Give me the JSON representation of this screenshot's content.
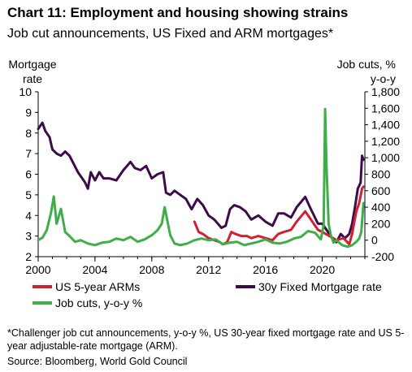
{
  "header": {
    "title": "Chart 11: Employment and housing showing strains",
    "subtitle": "Job cut announcements, US Fixed and ARM mortgages*"
  },
  "footnote": "*Challenger job cut announcements, y-o-y %, US 30-year fixed mortgage rate and US 5-year adjustable-rate mortgage (ARM).",
  "source": "Source: Bloomberg, World Gold Council",
  "chart_data": {
    "type": "line",
    "x_ticks": [
      "2000",
      "2004",
      "2008",
      "2012",
      "2016",
      "2020"
    ],
    "xlim": [
      2000,
      2023
    ],
    "left_axis": {
      "label_lines": [
        "Mortgage",
        "rate"
      ],
      "ylim": [
        2,
        10
      ],
      "ticks": [
        "2",
        "3",
        "4",
        "5",
        "6",
        "7",
        "8",
        "9",
        "10"
      ]
    },
    "right_axis": {
      "label_lines": [
        "Job cuts, %",
        "y-o-y"
      ],
      "ylim": [
        -200,
        1800
      ],
      "ticks": [
        "-200",
        "0",
        "200",
        "400",
        "600",
        "800",
        "1,000",
        "1,200",
        "1,400",
        "1,600",
        "1,800"
      ]
    },
    "legend": {
      "position": "bottom",
      "items": [
        {
          "key": "arm",
          "label": "US 5-year ARMs"
        },
        {
          "key": "fixed",
          "label": "30y Fixed Mortgage rate"
        },
        {
          "key": "jobcuts",
          "label": "Job cuts, y-o-y %"
        }
      ]
    },
    "colors": {
      "fixed": "#3d0b4a",
      "arm": "#d1202f",
      "jobcuts": "#3fae49"
    },
    "series": [
      {
        "key": "fixed",
        "name": "30y Fixed Mortgage rate",
        "axis": "left",
        "x": [
          2000.0,
          2000.3,
          2000.5,
          2000.8,
          2001.0,
          2001.3,
          2001.6,
          2001.9,
          2002.2,
          2002.5,
          2002.8,
          2003.0,
          2003.3,
          2003.5,
          2003.7,
          2004.0,
          2004.3,
          2004.6,
          2005.0,
          2005.5,
          2006.0,
          2006.5,
          2006.8,
          2007.2,
          2007.6,
          2008.0,
          2008.4,
          2008.8,
          2009.0,
          2009.3,
          2009.6,
          2010.0,
          2010.4,
          2010.8,
          2011.2,
          2011.6,
          2012.0,
          2012.4,
          2012.9,
          2013.2,
          2013.5,
          2013.8,
          2014.2,
          2014.6,
          2015.0,
          2015.5,
          2016.0,
          2016.5,
          2016.9,
          2017.3,
          2017.8,
          2018.2,
          2018.8,
          2019.2,
          2019.7,
          2020.0,
          2020.3,
          2020.7,
          2021.0,
          2021.3,
          2021.6,
          2021.9,
          2022.1,
          2022.3,
          2022.5,
          2022.7,
          2022.8,
          2022.9
        ],
        "values": [
          8.2,
          8.5,
          8.1,
          7.8,
          7.2,
          7.0,
          6.9,
          7.1,
          6.9,
          6.5,
          6.1,
          5.9,
          5.6,
          5.3,
          6.1,
          5.7,
          6.1,
          5.8,
          5.8,
          5.7,
          6.2,
          6.6,
          6.3,
          6.2,
          6.4,
          5.8,
          6.0,
          6.1,
          5.1,
          5.0,
          5.2,
          5.0,
          4.8,
          4.3,
          4.8,
          4.5,
          4.0,
          3.8,
          3.4,
          3.5,
          4.3,
          4.5,
          4.4,
          4.2,
          3.8,
          4.0,
          3.7,
          3.5,
          4.1,
          4.1,
          3.9,
          4.4,
          4.9,
          4.3,
          3.6,
          3.6,
          3.3,
          2.9,
          2.7,
          3.1,
          2.9,
          3.1,
          3.6,
          4.4,
          5.3,
          5.6,
          6.9,
          6.7
        ]
      },
      {
        "key": "arm",
        "name": "US 5-year ARMs",
        "axis": "left",
        "x": [
          2011.0,
          2011.3,
          2011.6,
          2012.0,
          2012.4,
          2012.8,
          2013.0,
          2013.3,
          2013.6,
          2013.9,
          2014.3,
          2014.7,
          2015.0,
          2015.5,
          2016.0,
          2016.5,
          2016.9,
          2017.3,
          2017.8,
          2018.2,
          2018.8,
          2019.2,
          2019.7,
          2020.0,
          2020.5,
          2021.0,
          2021.5,
          2021.9,
          2022.1,
          2022.4,
          2022.6,
          2022.8,
          2022.9
        ],
        "values": [
          3.7,
          3.2,
          3.1,
          2.9,
          2.8,
          2.7,
          2.6,
          2.7,
          3.2,
          3.1,
          3.0,
          3.0,
          2.9,
          3.0,
          2.9,
          2.8,
          3.1,
          3.2,
          3.3,
          3.7,
          4.2,
          3.8,
          3.3,
          3.2,
          3.0,
          2.8,
          2.9,
          2.6,
          3.1,
          4.2,
          4.6,
          5.3,
          5.4
        ]
      },
      {
        "key": "jobcuts",
        "name": "Job cuts, y-o-y %",
        "axis": "right",
        "x": [
          2000.0,
          2000.3,
          2000.6,
          2000.9,
          2001.1,
          2001.3,
          2001.6,
          2001.9,
          2002.2,
          2002.6,
          2003.0,
          2003.5,
          2004.0,
          2004.5,
          2005.0,
          2005.5,
          2006.0,
          2006.5,
          2007.0,
          2007.5,
          2008.0,
          2008.4,
          2008.7,
          2008.9,
          2009.1,
          2009.3,
          2009.6,
          2010.0,
          2010.5,
          2011.0,
          2011.5,
          2012.0,
          2012.5,
          2013.0,
          2013.5,
          2014.0,
          2014.5,
          2015.0,
          2015.5,
          2016.0,
          2016.5,
          2017.0,
          2017.5,
          2018.0,
          2018.5,
          2019.0,
          2019.5,
          2019.9,
          2020.1,
          2020.2,
          2020.3,
          2020.45,
          2020.6,
          2020.8,
          2021.0,
          2021.4,
          2021.8,
          2022.1,
          2022.4,
          2022.6,
          2022.75,
          2022.9
        ],
        "values": [
          0,
          30,
          120,
          330,
          530,
          200,
          380,
          100,
          50,
          -20,
          0,
          -40,
          -60,
          -30,
          -20,
          20,
          0,
          40,
          -20,
          10,
          60,
          120,
          200,
          400,
          230,
          60,
          -40,
          -60,
          -40,
          0,
          20,
          0,
          10,
          -50,
          -30,
          -20,
          -60,
          -40,
          -20,
          10,
          -30,
          -40,
          -20,
          20,
          40,
          110,
          90,
          10,
          180,
          1590,
          900,
          200,
          60,
          -30,
          0,
          -60,
          -80,
          -60,
          -20,
          20,
          100,
          450
        ]
      }
    ]
  }
}
